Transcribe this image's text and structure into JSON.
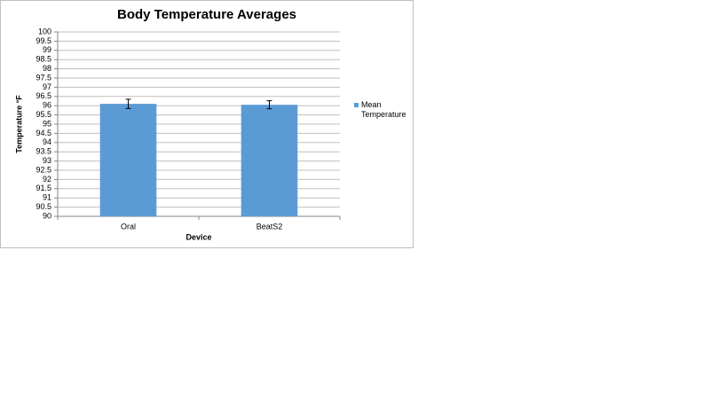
{
  "chart_data": {
    "type": "bar",
    "title": "Body Temperature Averages",
    "x_label": "Device",
    "y_label": "Temperature °F",
    "categories": [
      "Oral",
      "BeatS2"
    ],
    "series": [
      {
        "name": "Mean Temperature",
        "color": "#5b9bd5",
        "values": [
          96.1,
          96.05
        ],
        "errors": [
          0.25,
          0.22
        ]
      }
    ],
    "ylim": [
      90,
      100
    ],
    "yticks": [
      90,
      90.5,
      91,
      91.5,
      92,
      92.5,
      93,
      93.5,
      94,
      94.5,
      95,
      95.5,
      96,
      96.5,
      97,
      97.5,
      98,
      98.5,
      99,
      99.5,
      100
    ],
    "grid": true,
    "legend": "right"
  }
}
